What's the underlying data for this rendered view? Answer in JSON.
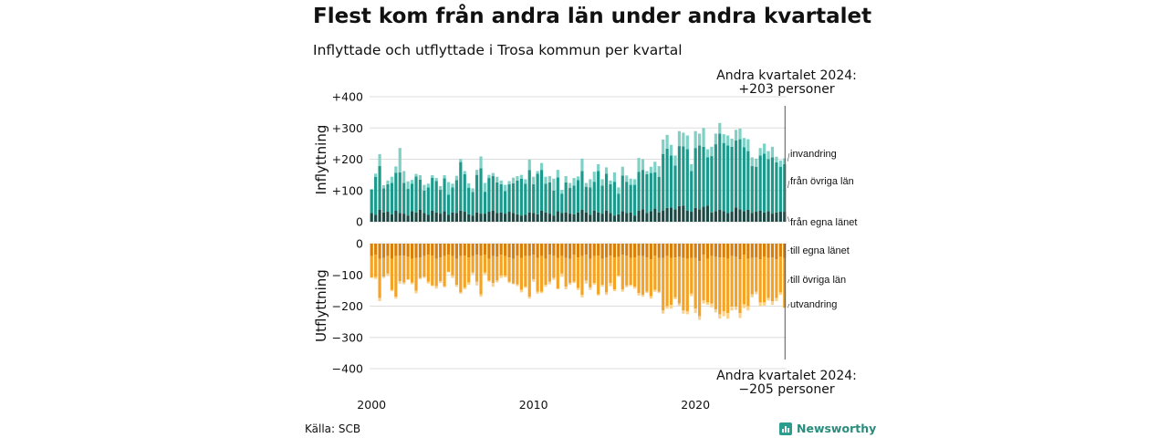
{
  "title": "Flest kom från andra län under andra kvartalet",
  "subtitle": "Inflyttade och utflyttade i Trosa kommun per kvartal",
  "source": "Källa: SCB",
  "brand": "Newsworthy",
  "colors": {
    "in_own": "#1e4a46",
    "in_other": "#1b9a8c",
    "in_immig": "#7fd1c6",
    "out_own": "#d97f08",
    "out_other": "#f4a325",
    "out_emig": "#fbd28d",
    "grid": "#dddddd",
    "marker": "#555555"
  },
  "annotations": {
    "top_line1": "Andra kvartalet 2024:",
    "top_line2": "+203 personer",
    "bottom_line1": "Andra kvartalet 2024:",
    "bottom_line2": "−205 personer"
  },
  "chart_data": {
    "type": "bar",
    "stacked": true,
    "x_start": "2000 Q1",
    "x_tick_labels": [
      "2000",
      "2010",
      "2020"
    ],
    "panels": [
      {
        "ylabel": "Inflyttning",
        "ylim": [
          0,
          400
        ],
        "y_tick_labels": [
          "0",
          "+100",
          "+200",
          "+300",
          "+400"
        ],
        "series": [
          {
            "name": "från egna länet",
            "values": [
              28,
              22,
              38,
              30,
              32,
              24,
              35,
              28,
              26,
              20,
              34,
              30,
              38,
              28,
              22,
              36,
              30,
              26,
              34,
              22,
              30,
              28,
              36,
              32,
              24,
              20,
              30,
              26,
              26,
              32,
              36,
              28,
              30,
              26,
              32,
              28,
              24,
              20,
              22,
              30,
              28,
              24,
              36,
              30,
              26,
              20,
              34,
              28,
              30,
              26,
              24,
              30,
              38,
              30,
              22,
              36,
              30,
              26,
              36,
              28,
              20,
              24,
              34,
              28,
              30,
              20,
              36,
              40,
              28,
              34,
              42,
              30,
              36,
              44,
              46,
              40,
              50,
              52,
              36,
              32,
              44,
              40,
              48,
              52,
              30,
              34,
              38,
              34,
              28,
              32,
              46,
              40,
              34,
              38,
              28,
              32,
              36,
              30,
              34,
              26,
              30,
              32,
              32
            ]
          },
          {
            "name": "från övriga län",
            "values": [
              75,
              122,
              140,
              77,
              88,
              100,
              122,
              130,
              98,
              85,
              88,
              115,
              97,
              72,
              88,
              105,
              100,
              76,
              105,
              65,
              80,
              105,
              155,
              120,
              85,
              75,
              120,
              145,
              70,
              108,
              110,
              98,
              90,
              72,
              88,
              95,
              108,
              118,
              100,
              135,
              92,
              130,
              130,
              92,
              100,
              80,
              108,
              62,
              96,
              82,
              92,
              103,
              124,
              82,
              88,
              92,
              132,
              90,
              118,
              92,
              108,
              66,
              114,
              100,
              88,
              98,
              124,
              126,
              124,
              122,
              116,
              114,
              181,
              190,
              166,
              140,
              192,
              189,
              196,
              130,
              192,
              204,
              192,
              154,
              180,
              214,
              244,
              218,
              216,
              208,
              214,
              224,
              204,
              188,
              150,
              144,
              176,
              188,
              166,
              180,
              160,
              144,
              152
            ]
          },
          {
            "name": "invandring",
            "values": [
              2,
              10,
              38,
              10,
              12,
              20,
              20,
              78,
              38,
              24,
              12,
              8,
              14,
              18,
              12,
              8,
              10,
              12,
              10,
              40,
              12,
              14,
              10,
              10,
              14,
              12,
              16,
              38,
              28,
              10,
              10,
              18,
              12,
              20,
              10,
              18,
              14,
              12,
              14,
              34,
              24,
              8,
              22,
              22,
              20,
              38,
              24,
              12,
              20,
              16,
              24,
              12,
              40,
              12,
              26,
              32,
              22,
              20,
              20,
              12,
              30,
              20,
              28,
              20,
              20,
              18,
              44,
              34,
              10,
              20,
              34,
              34,
              46,
              44,
              34,
              32,
              48,
              44,
              44,
              22,
              54,
              38,
              60,
              26,
              30,
              34,
              34,
              28,
              32,
              26,
              34,
              34,
              30,
              38,
              28,
              26,
              24,
              32,
              26,
              34,
              18,
              20,
              19
            ]
          }
        ]
      },
      {
        "ylabel": "Utflyttning",
        "ylim": [
          -400,
          0
        ],
        "y_tick_labels": [
          "0",
          "−100",
          "−200",
          "−300",
          "−400"
        ],
        "series": [
          {
            "name": "till egna länet",
            "values": [
              -40,
              -35,
              -48,
              -46,
              -40,
              -48,
              -40,
              -38,
              -38,
              -42,
              -48,
              -46,
              -44,
              -40,
              -36,
              -38,
              -48,
              -44,
              -40,
              -36,
              -40,
              -48,
              -40,
              -38,
              -44,
              -40,
              -36,
              -38,
              -36,
              -48,
              -40,
              -42,
              -36,
              -40,
              -44,
              -48,
              -38,
              -46,
              -40,
              -40,
              -36,
              -46,
              -40,
              -48,
              -36,
              -38,
              -46,
              -40,
              -46,
              -48,
              -36,
              -44,
              -40,
              -36,
              -48,
              -40,
              -38,
              -48,
              -44,
              -38,
              -44,
              -42,
              -36,
              -38,
              -46,
              -44,
              -38,
              -40,
              -44,
              -50,
              -38,
              -46,
              -46,
              -40,
              -46,
              -44,
              -42,
              -46,
              -48,
              -46,
              -46,
              -56,
              -36,
              -48,
              -40,
              -42,
              -44,
              -44,
              -48,
              -40,
              -42,
              -50,
              -36,
              -48,
              -46,
              -44,
              -50,
              -42,
              -46,
              -44,
              -50,
              -42,
              -46
            ]
          },
          {
            "name": "till övriga län",
            "values": [
              -68,
              -72,
              -126,
              -60,
              -56,
              -100,
              -130,
              -82,
              -86,
              -72,
              -76,
              -105,
              -66,
              -66,
              -86,
              -96,
              -88,
              -76,
              -96,
              -54,
              -62,
              -84,
              -116,
              -102,
              -80,
              -52,
              -86,
              -124,
              -56,
              -70,
              -86,
              -76,
              -66,
              -62,
              -78,
              -80,
              -92,
              -102,
              -98,
              -130,
              -78,
              -108,
              -114,
              -84,
              -86,
              -72,
              -98,
              -56,
              -92,
              -78,
              -86,
              -98,
              -124,
              -82,
              -92,
              -86,
              -124,
              -84,
              -112,
              -88,
              -102,
              -60,
              -110,
              -96,
              -86,
              -94,
              -120,
              -124,
              -110,
              -118,
              -110,
              -108,
              -168,
              -160,
              -150,
              -128,
              -150,
              -168,
              -168,
              -114,
              -162,
              -176,
              -146,
              -140,
              -152,
              -168,
              -182,
              -172,
              -174,
              -162,
              -160,
              -172,
              -158,
              -152,
              -116,
              -110,
              -138,
              -146,
              -128,
              -140,
              -124,
              -114,
              -159
            ]
          },
          {
            "name": "utvandring",
            "values": [
              -2,
              -6,
              -10,
              -4,
              -8,
              -4,
              -6,
              -8,
              -6,
              -2,
              -6,
              -8,
              -4,
              -4,
              -6,
              -2,
              -8,
              -6,
              -4,
              -2,
              -8,
              -6,
              -4,
              -6,
              -8,
              -6,
              -12,
              -8,
              -6,
              -4,
              -12,
              -6,
              -8,
              -6,
              -4,
              -2,
              -6,
              -8,
              -4,
              -6,
              -8,
              -6,
              -4,
              -6,
              -8,
              -6,
              -2,
              -10,
              -8,
              -6,
              -4,
              -6,
              -8,
              -10,
              -8,
              -6,
              -4,
              -6,
              -8,
              -10,
              -6,
              -4,
              -8,
              -6,
              -4,
              -6,
              -8,
              -6,
              -4,
              -8,
              -6,
              -4,
              -10,
              -8,
              -12,
              -6,
              -8,
              -10,
              -10,
              -8,
              -14,
              -12,
              -10,
              -8,
              -12,
              -10,
              -14,
              -16,
              -18,
              -12,
              -10,
              -16,
              -12,
              -14,
              -10,
              -8,
              -12,
              -10,
              -8,
              -12,
              -10,
              -8,
              0
            ]
          }
        ]
      }
    ]
  }
}
